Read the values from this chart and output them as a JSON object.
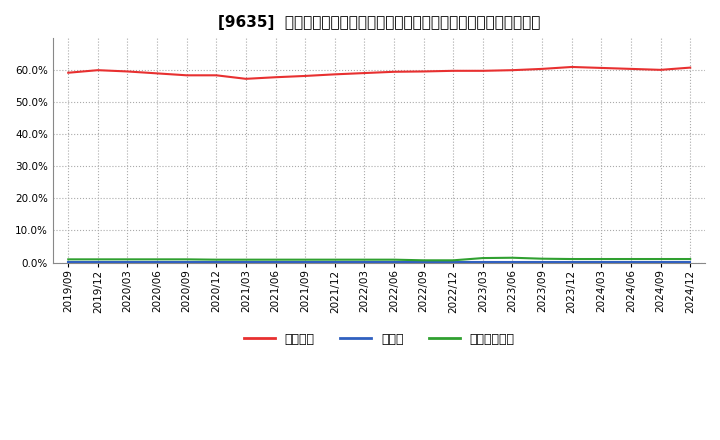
{
  "title": "[9635]  自己資本、のれん、繰延税金資産の総資産に対する比率の推移",
  "x_labels": [
    "2019/09",
    "2019/12",
    "2020/03",
    "2020/06",
    "2020/09",
    "2020/12",
    "2021/03",
    "2021/06",
    "2021/09",
    "2021/12",
    "2022/03",
    "2022/06",
    "2022/09",
    "2022/12",
    "2023/03",
    "2023/06",
    "2023/09",
    "2023/12",
    "2024/03",
    "2024/06",
    "2024/09",
    "2024/12"
  ],
  "equity_ratio": [
    0.592,
    0.6,
    0.596,
    0.59,
    0.584,
    0.584,
    0.573,
    0.578,
    0.582,
    0.587,
    0.591,
    0.595,
    0.596,
    0.598,
    0.598,
    0.6,
    0.604,
    0.61,
    0.607,
    0.604,
    0.601,
    0.608
  ],
  "goodwill_ratio": [
    0.001,
    0.001,
    0.001,
    0.001,
    0.001,
    0.001,
    0.001,
    0.001,
    0.001,
    0.001,
    0.001,
    0.001,
    0.001,
    0.001,
    0.001,
    0.001,
    0.001,
    0.001,
    0.001,
    0.001,
    0.001,
    0.001
  ],
  "deferred_tax_ratio": [
    0.01,
    0.01,
    0.01,
    0.01,
    0.01,
    0.009,
    0.009,
    0.009,
    0.009,
    0.009,
    0.009,
    0.009,
    0.007,
    0.007,
    0.014,
    0.015,
    0.012,
    0.011,
    0.011,
    0.011,
    0.011,
    0.011
  ],
  "equity_color": "#e83030",
  "goodwill_color": "#3060c0",
  "deferred_tax_color": "#30a030",
  "background_color": "#ffffff",
  "grid_color": "#aaaaaa",
  "ylim": [
    0.0,
    0.7
  ],
  "yticks": [
    0.0,
    0.1,
    0.2,
    0.3,
    0.4,
    0.5,
    0.6
  ],
  "legend_labels": [
    "自己資本",
    "のれん",
    "繰延税金資産"
  ],
  "title_fontsize": 11,
  "tick_fontsize": 7.5,
  "legend_fontsize": 9
}
